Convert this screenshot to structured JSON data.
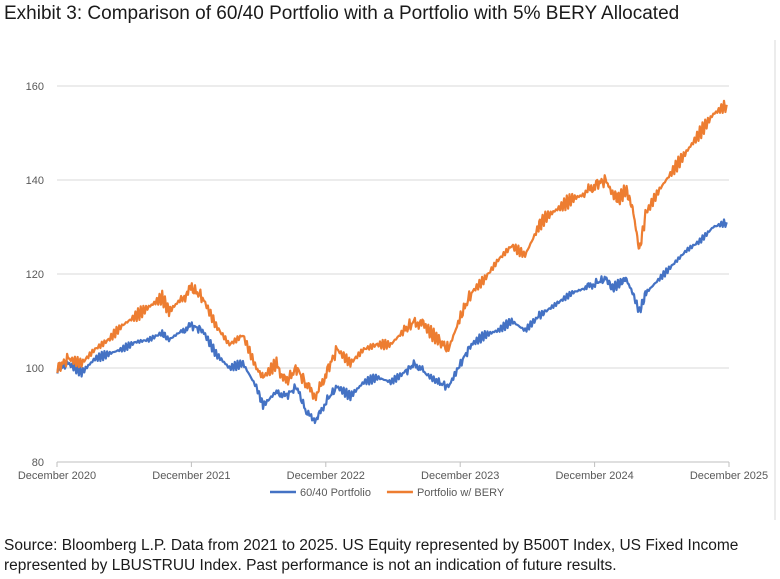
{
  "title": "Exhibit 3: Comparison of 60/40 Portfolio with a Portfolio with 5% BERY Allocated",
  "source": "Source: Bloomberg L.P. Data from 2021 to 2025. US Equity represented by B500T Index, US Fixed Income represented by LBUSTRUU Index. Past performance is not an indication of future results.",
  "chart_data": {
    "type": "line",
    "title": "",
    "xlabel": "",
    "ylabel": "",
    "x_tick_labels": [
      "December 2020",
      "December 2021",
      "December 2022",
      "December 2023",
      "December 2024",
      "December 2025"
    ],
    "x_range": [
      2020.917,
      2025.917
    ],
    "ylim": [
      80,
      160
    ],
    "y_ticks": [
      80,
      100,
      120,
      140,
      160
    ],
    "grid": "horizontal",
    "legend": "bottom",
    "series": [
      {
        "name": "60/40 Portfolio",
        "color": "#4472C4",
        "x": [
          2020.92,
          2021.0,
          2021.1,
          2021.2,
          2021.3,
          2021.4,
          2021.5,
          2021.6,
          2021.7,
          2021.75,
          2021.85,
          2021.92,
          2022.0,
          2022.1,
          2022.2,
          2022.3,
          2022.4,
          2022.45,
          2022.55,
          2022.62,
          2022.7,
          2022.78,
          2022.85,
          2022.92,
          2023.0,
          2023.1,
          2023.2,
          2023.3,
          2023.4,
          2023.5,
          2023.58,
          2023.65,
          2023.75,
          2023.83,
          2023.92,
          2024.0,
          2024.1,
          2024.2,
          2024.3,
          2024.4,
          2024.5,
          2024.55,
          2024.65,
          2024.75,
          2024.85,
          2024.92,
          2025.0,
          2025.05,
          2025.1,
          2025.15,
          2025.2,
          2025.25,
          2025.3,
          2025.4,
          2025.5,
          2025.6,
          2025.7,
          2025.8,
          2025.9
        ],
        "values": [
          99.5,
          101,
          99,
          102,
          103,
          104,
          105.5,
          106,
          107.5,
          106,
          108,
          109,
          108,
          103,
          100,
          101,
          96,
          92,
          95,
          94,
          96,
          90,
          89,
          93,
          96,
          94,
          97,
          98,
          97,
          99,
          101,
          99,
          97,
          96,
          101,
          105,
          107,
          108,
          110,
          108,
          111,
          112,
          114,
          116,
          117,
          118,
          119,
          117,
          118,
          119,
          116,
          112,
          116,
          119,
          122,
          125,
          127,
          130,
          131
        ]
      },
      {
        "name": "Portfolio w/ BERY",
        "color": "#ED7D31",
        "x": [
          2020.92,
          2021.0,
          2021.1,
          2021.2,
          2021.3,
          2021.4,
          2021.5,
          2021.6,
          2021.7,
          2021.75,
          2021.85,
          2021.92,
          2022.0,
          2022.1,
          2022.2,
          2022.3,
          2022.4,
          2022.45,
          2022.55,
          2022.62,
          2022.7,
          2022.78,
          2022.85,
          2022.92,
          2023.0,
          2023.1,
          2023.2,
          2023.3,
          2023.4,
          2023.5,
          2023.58,
          2023.65,
          2023.75,
          2023.83,
          2023.92,
          2024.0,
          2024.1,
          2024.2,
          2024.3,
          2024.4,
          2024.5,
          2024.55,
          2024.65,
          2024.75,
          2024.85,
          2024.92,
          2025.0,
          2025.05,
          2025.1,
          2025.15,
          2025.2,
          2025.25,
          2025.3,
          2025.4,
          2025.5,
          2025.6,
          2025.7,
          2025.8,
          2025.9
        ],
        "values": [
          100,
          102,
          101,
          104,
          106,
          109,
          111,
          113,
          115,
          112,
          115,
          117,
          115,
          109,
          105,
          107,
          100,
          98,
          101,
          97,
          100,
          96,
          94,
          99,
          104,
          101,
          104,
          105,
          105,
          108,
          110,
          109,
          106,
          104,
          111,
          116,
          119,
          123,
          126,
          124,
          130,
          132,
          134,
          136,
          137,
          139,
          140,
          137,
          136,
          138,
          134,
          125,
          133,
          138,
          142,
          146,
          150,
          154,
          156
        ]
      }
    ]
  }
}
